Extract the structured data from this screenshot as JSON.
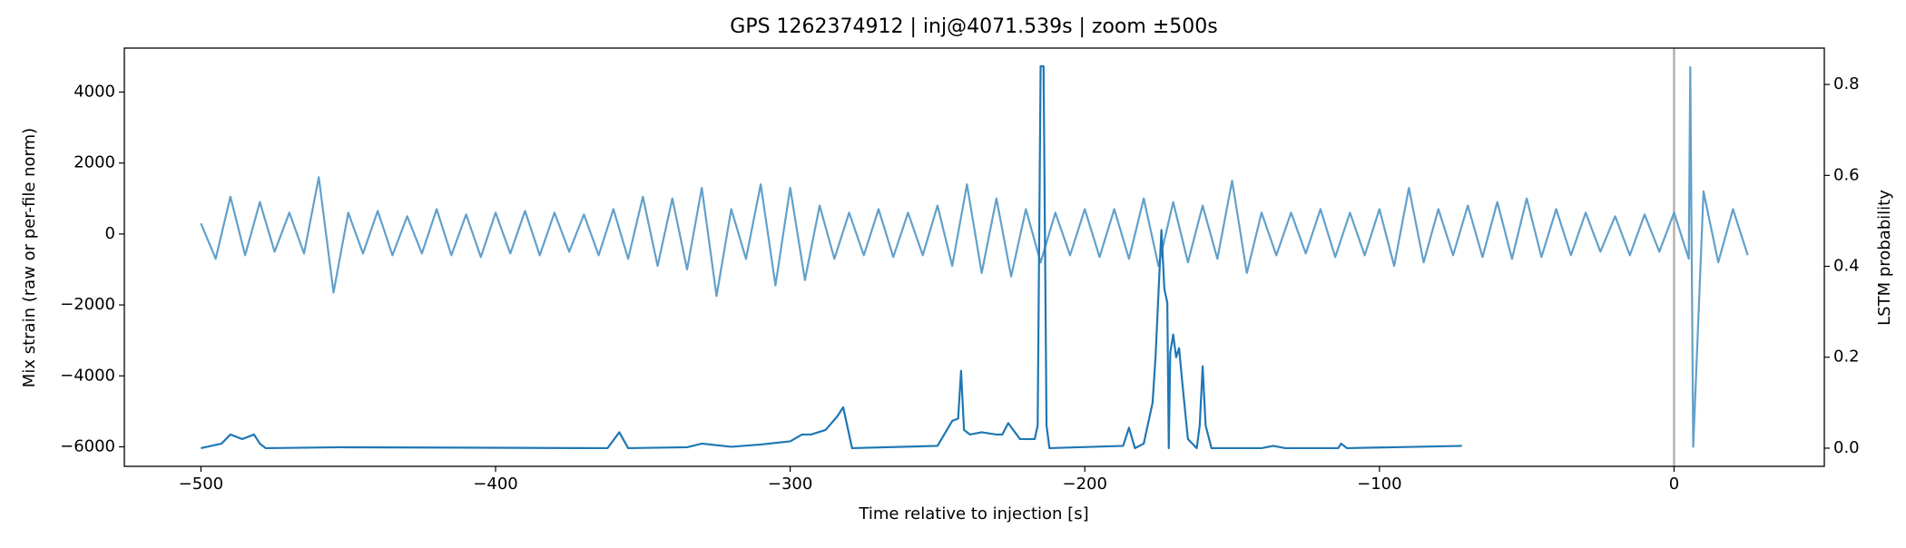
{
  "chart_data": {
    "type": "line",
    "title": "GPS 1262374912 | inj@4071.539s | zoom ±500s",
    "xlabel": "Time relative to injection [s]",
    "ylabel": "Mix strain (raw or per-file norm)",
    "y2label": "LSTM probability",
    "xlim": [
      -526,
      51
    ],
    "ylim": [
      -6550,
      5240
    ],
    "y2lim": [
      -0.04,
      0.88
    ],
    "xticks": [
      {
        "value": -500,
        "label": "−500"
      },
      {
        "value": -400,
        "label": "−400"
      },
      {
        "value": -300,
        "label": "−300"
      },
      {
        "value": -200,
        "label": "−200"
      },
      {
        "value": -100,
        "label": "−100"
      },
      0
    ],
    "yticks": [
      {
        "value": -6000,
        "label": "−6000"
      },
      {
        "value": -4000,
        "label": "−4000"
      },
      {
        "value": -2000,
        "label": "−2000"
      },
      0,
      2000,
      4000
    ],
    "y2ticks": [
      {
        "value": 0,
        "label": "0.0"
      },
      0.2,
      0.4,
      0.6,
      0.8
    ],
    "vlines": [
      {
        "x": 0,
        "color": "#b3b3b3"
      }
    ],
    "series": [
      {
        "color": "#62a0cb",
        "axis": "y",
        "x": [
          -500,
          -495,
          -490,
          -485,
          -480,
          -475,
          -470,
          -465,
          -460,
          -455,
          -450,
          -445,
          -440,
          -435,
          -430,
          -425,
          -420,
          -415,
          -410,
          -405,
          -400,
          -395,
          -390,
          -385,
          -380,
          -375,
          -370,
          -365,
          -360,
          -355,
          -350,
          -345,
          -340,
          -335,
          -330,
          -325,
          -320,
          -315,
          -310,
          -305,
          -300,
          -295,
          -290,
          -285,
          -280,
          -275,
          -270,
          -265,
          -260,
          -255,
          -250,
          -245,
          -240,
          -235,
          -230,
          -225,
          -220,
          -215,
          -210,
          -205,
          -200,
          -195,
          -190,
          -185,
          -180,
          -175,
          -170,
          -165,
          -160,
          -155,
          -150,
          -145,
          -140,
          -135,
          -130,
          -125,
          -120,
          -115,
          -110,
          -105,
          -100,
          -95,
          -90,
          -85,
          -80,
          -75,
          -70,
          -65,
          -60,
          -55,
          -50,
          -45,
          -40,
          -35,
          -30,
          -25,
          -20,
          -15,
          -10,
          -5,
          0,
          5,
          5.5,
          6.5,
          10,
          15,
          20,
          25
        ],
        "values": [
          300,
          -700,
          1050,
          -600,
          900,
          -500,
          600,
          -550,
          1600,
          -1650,
          600,
          -550,
          650,
          -600,
          500,
          -550,
          700,
          -600,
          550,
          -650,
          600,
          -550,
          650,
          -600,
          600,
          -500,
          550,
          -600,
          700,
          -700,
          1050,
          -900,
          1000,
          -1000,
          1300,
          -1750,
          700,
          -700,
          1400,
          -1450,
          1300,
          -1300,
          800,
          -700,
          600,
          -600,
          700,
          -650,
          600,
          -600,
          800,
          -900,
          1400,
          -1100,
          1000,
          -1200,
          700,
          -800,
          600,
          -600,
          700,
          -650,
          700,
          -700,
          1000,
          -900,
          900,
          -800,
          800,
          -700,
          1500,
          -1100,
          600,
          -600,
          600,
          -550,
          700,
          -650,
          600,
          -600,
          700,
          -900,
          1300,
          -800,
          700,
          -600,
          800,
          -650,
          900,
          -700,
          1000,
          -650,
          700,
          -600,
          600,
          -500,
          500,
          -600,
          550,
          -500,
          600,
          -700,
          4700,
          -6000,
          1200,
          -800,
          700,
          -600
        ]
      },
      {
        "color": "#1f77b4",
        "axis": "y2",
        "x": [
          -500,
          -493,
          -490,
          -486,
          -482,
          -480,
          -478,
          -452,
          -362,
          -358,
          -355,
          -335,
          -330,
          -320,
          -310,
          -300,
          -296,
          -293,
          -288,
          -284,
          -282,
          -279,
          -250,
          -245,
          -243,
          -242,
          -241,
          -239,
          -235,
          -230,
          -228,
          -226,
          -222,
          -217,
          -216,
          -215,
          -214,
          -213,
          -212,
          -187,
          -185,
          -183,
          -180,
          -177,
          -176,
          -174,
          -173,
          -172,
          -171.5,
          -171,
          -170,
          -169,
          -168,
          -167,
          -165,
          -162,
          -161,
          -160,
          -159,
          -157,
          -140,
          -136,
          -132,
          -114,
          -113,
          -111,
          -72
        ],
        "values": [
          0,
          0.01,
          0.03,
          0.02,
          0.03,
          0.01,
          0,
          0.002,
          0,
          0.035,
          0,
          0.002,
          0.01,
          0.003,
          0.008,
          0.015,
          0.03,
          0.03,
          0.04,
          0.07,
          0.09,
          0,
          0.005,
          0.06,
          0.065,
          0.17,
          0.04,
          0.03,
          0.035,
          0.03,
          0.03,
          0.055,
          0.02,
          0.02,
          0.05,
          0.84,
          0.84,
          0.05,
          0,
          0.005,
          0.045,
          0,
          0.01,
          0.1,
          0.2,
          0.48,
          0.35,
          0.32,
          0.0,
          0.21,
          0.25,
          0.2,
          0.22,
          0.15,
          0.02,
          0,
          0.05,
          0.18,
          0.05,
          0,
          0,
          0.005,
          0,
          0,
          0.01,
          0,
          0.005
        ]
      }
    ]
  }
}
